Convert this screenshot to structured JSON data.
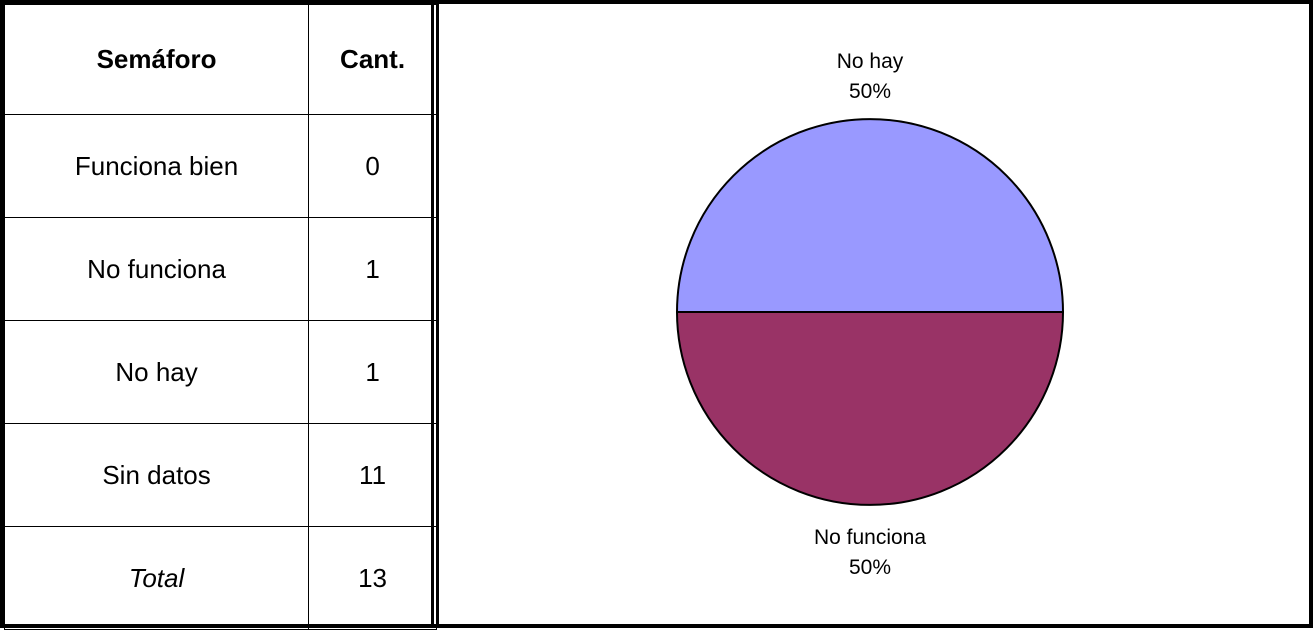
{
  "table": {
    "header": {
      "category": "Semáforo",
      "count": "Cant."
    },
    "rows": [
      {
        "label": "Funciona bien",
        "value": "0"
      },
      {
        "label": "No funciona",
        "value": "1"
      },
      {
        "label": "No hay",
        "value": "1"
      },
      {
        "label": "Sin datos",
        "value": "11"
      }
    ],
    "total": {
      "label": "Total",
      "value": "13"
    }
  },
  "chart_data": {
    "type": "pie",
    "slices": [
      {
        "name": "No hay",
        "value": 50,
        "percent_label": "50%",
        "color": "#9999ff"
      },
      {
        "name": "No funciona",
        "value": 50,
        "percent_label": "50%",
        "color": "#993366"
      }
    ],
    "colors": {
      "outline": "#000000"
    }
  }
}
